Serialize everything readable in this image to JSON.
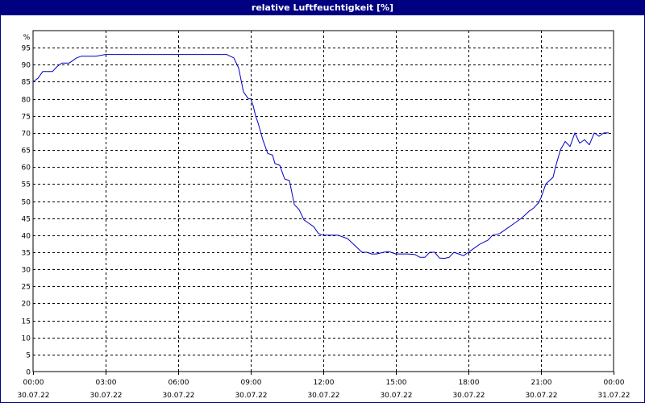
{
  "window": {
    "title": "relative Luftfeuchtigkeit [%]"
  },
  "colors": {
    "title_bar": "#000080",
    "series_line": "#0000c8",
    "grid": "#000000",
    "background": "#ffffff"
  },
  "chart_data": {
    "type": "line",
    "title": "relative Luftfeuchtigkeit [%]",
    "y_unit_label": "%",
    "ylim": [
      0,
      100
    ],
    "y_ticks": [
      0,
      5,
      10,
      15,
      20,
      25,
      30,
      35,
      40,
      45,
      50,
      55,
      60,
      65,
      70,
      75,
      80,
      85,
      90,
      95
    ],
    "xlim_hours": [
      0,
      24
    ],
    "x_ticks": [
      {
        "hour": 0,
        "time": "00:00",
        "date": "30.07.22"
      },
      {
        "hour": 3,
        "time": "03:00",
        "date": "30.07.22"
      },
      {
        "hour": 6,
        "time": "06:00",
        "date": "30.07.22"
      },
      {
        "hour": 9,
        "time": "09:00",
        "date": "30.07.22"
      },
      {
        "hour": 12,
        "time": "12:00",
        "date": "30.07.22"
      },
      {
        "hour": 15,
        "time": "15:00",
        "date": "30.07.22"
      },
      {
        "hour": 18,
        "time": "18:00",
        "date": "30.07.22"
      },
      {
        "hour": 21,
        "time": "21:00",
        "date": "30.07.22"
      },
      {
        "hour": 24,
        "time": "00:00",
        "date": "31.07.22"
      }
    ],
    "grid": true,
    "series": [
      {
        "x_hours": [
          0,
          0.2,
          0.4,
          0.6,
          0.8,
          1.0,
          1.2,
          1.5,
          1.8,
          2.0,
          2.3,
          2.6,
          3.0,
          4.0,
          5.0,
          6.0,
          7.0,
          8.0,
          8.3,
          8.5,
          8.7,
          8.9,
          9.0,
          9.1,
          9.2,
          9.3,
          9.5,
          9.7,
          9.9,
          10.0,
          10.2,
          10.4,
          10.6,
          10.8,
          11.0,
          11.2,
          11.4,
          11.6,
          11.8,
          12.0,
          12.3,
          12.6,
          13.0,
          13.3,
          13.6,
          13.8,
          14.0,
          14.2,
          14.5,
          14.7,
          15.0,
          15.2,
          15.5,
          15.8,
          16.0,
          16.2,
          16.4,
          16.6,
          16.8,
          17.0,
          17.2,
          17.4,
          17.6,
          17.8,
          18.0,
          18.2,
          18.5,
          18.8,
          19.0,
          19.3,
          19.6,
          19.8,
          20.0,
          20.2,
          20.5,
          20.7,
          20.9,
          21.0,
          21.2,
          21.5,
          21.6,
          21.8,
          22.0,
          22.2,
          22.4,
          22.6,
          22.8,
          23.0,
          23.2,
          23.4,
          23.6,
          23.8
        ],
        "values": [
          85,
          86,
          88,
          88,
          88,
          89.5,
          90.5,
          90.5,
          92,
          92.5,
          92.5,
          92.5,
          93,
          93,
          93,
          93,
          93,
          93,
          92,
          89,
          82,
          80,
          80,
          78,
          75,
          73,
          68,
          64,
          63.5,
          61,
          60.5,
          56.5,
          56,
          49,
          47.5,
          44.5,
          43.5,
          42.5,
          40.5,
          40,
          40,
          40,
          39,
          37,
          35,
          35,
          34.5,
          34.5,
          35,
          35.2,
          34.5,
          34.5,
          34.5,
          34.3,
          33.5,
          33.5,
          35,
          35,
          33.3,
          33.2,
          33.5,
          35,
          34.5,
          34,
          35,
          36,
          37.5,
          38.5,
          40,
          40.5,
          42,
          43,
          44,
          45,
          47,
          48,
          49.5,
          51,
          55,
          57,
          60,
          65,
          67.5,
          66,
          70,
          67,
          68,
          66.5,
          70,
          69,
          70,
          70
        ]
      }
    ]
  }
}
